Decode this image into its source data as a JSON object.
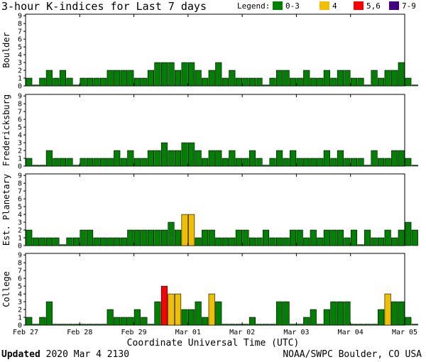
{
  "title": "3-hour K-indices for Last 7 days",
  "legend": {
    "label": "Legend:",
    "items": [
      {
        "label": "0-3",
        "color": "#008000"
      },
      {
        "label": "4",
        "color": "#f0c000"
      },
      {
        "label": "5,6",
        "color": "#ff0000"
      },
      {
        "label": "7-9",
        "color": "#400080"
      }
    ]
  },
  "xaxis_title": "Coordinate Universal Time (UTC)",
  "footer": {
    "updated_label": "Updated",
    "updated_value": "2020 Mar  4 2130",
    "source": "NOAA/SWPC Boulder, CO USA"
  },
  "chart_data": {
    "type": "bar",
    "x_ticks": [
      "Feb 27",
      "Feb 28",
      "Feb 29",
      "Mar 01",
      "Mar 02",
      "Mar 03",
      "Mar 04",
      "Mar 05"
    ],
    "yticks": [
      0,
      1,
      2,
      3,
      4,
      5,
      6,
      7,
      8,
      9
    ],
    "ylim": [
      0,
      9
    ],
    "grid": false,
    "panels": [
      {
        "name": "Boulder",
        "values": [
          1,
          0,
          1,
          2,
          1,
          2,
          1,
          0,
          1,
          1,
          1,
          1,
          2,
          2,
          2,
          2,
          1,
          1,
          2,
          3,
          3,
          3,
          2,
          3,
          3,
          2,
          1,
          2,
          3,
          1,
          2,
          1,
          1,
          1,
          1,
          0,
          1,
          2,
          2,
          1,
          1,
          2,
          1,
          1,
          2,
          1,
          2,
          2,
          1,
          1,
          0,
          2,
          1,
          2,
          2,
          3,
          1,
          0
        ]
      },
      {
        "name": "Fredericksburg",
        "values": [
          1,
          0,
          0,
          2,
          1,
          1,
          1,
          0,
          1,
          1,
          1,
          1,
          1,
          2,
          1,
          2,
          1,
          1,
          2,
          2,
          3,
          2,
          2,
          3,
          3,
          2,
          1,
          2,
          2,
          1,
          2,
          1,
          1,
          2,
          1,
          0,
          1,
          2,
          1,
          2,
          1,
          1,
          1,
          1,
          2,
          1,
          2,
          1,
          1,
          1,
          0,
          2,
          1,
          1,
          2,
          2,
          1,
          0
        ]
      },
      {
        "name": "Est. Planetary",
        "values": [
          2,
          1,
          1,
          1,
          1,
          0,
          1,
          1,
          2,
          2,
          1,
          1,
          1,
          1,
          1,
          2,
          2,
          2,
          2,
          2,
          2,
          3,
          2,
          4,
          4,
          1,
          2,
          2,
          1,
          1,
          1,
          2,
          2,
          1,
          1,
          2,
          1,
          1,
          1,
          2,
          2,
          1,
          2,
          1,
          2,
          2,
          2,
          1,
          2,
          0,
          2,
          1,
          1,
          2,
          1,
          2,
          3,
          2
        ]
      },
      {
        "name": "College",
        "values": [
          1,
          0,
          1,
          3,
          0,
          0,
          0,
          0,
          0,
          0,
          0,
          0,
          2,
          1,
          1,
          1,
          2,
          1,
          0,
          3,
          5,
          4,
          4,
          2,
          2,
          3,
          1,
          4,
          3,
          0,
          0,
          0,
          0,
          1,
          0,
          0,
          0,
          3,
          3,
          0,
          0,
          1,
          2,
          0,
          2,
          3,
          3,
          3,
          0,
          0,
          0,
          0,
          2,
          4,
          3,
          3,
          1,
          0
        ]
      }
    ]
  }
}
